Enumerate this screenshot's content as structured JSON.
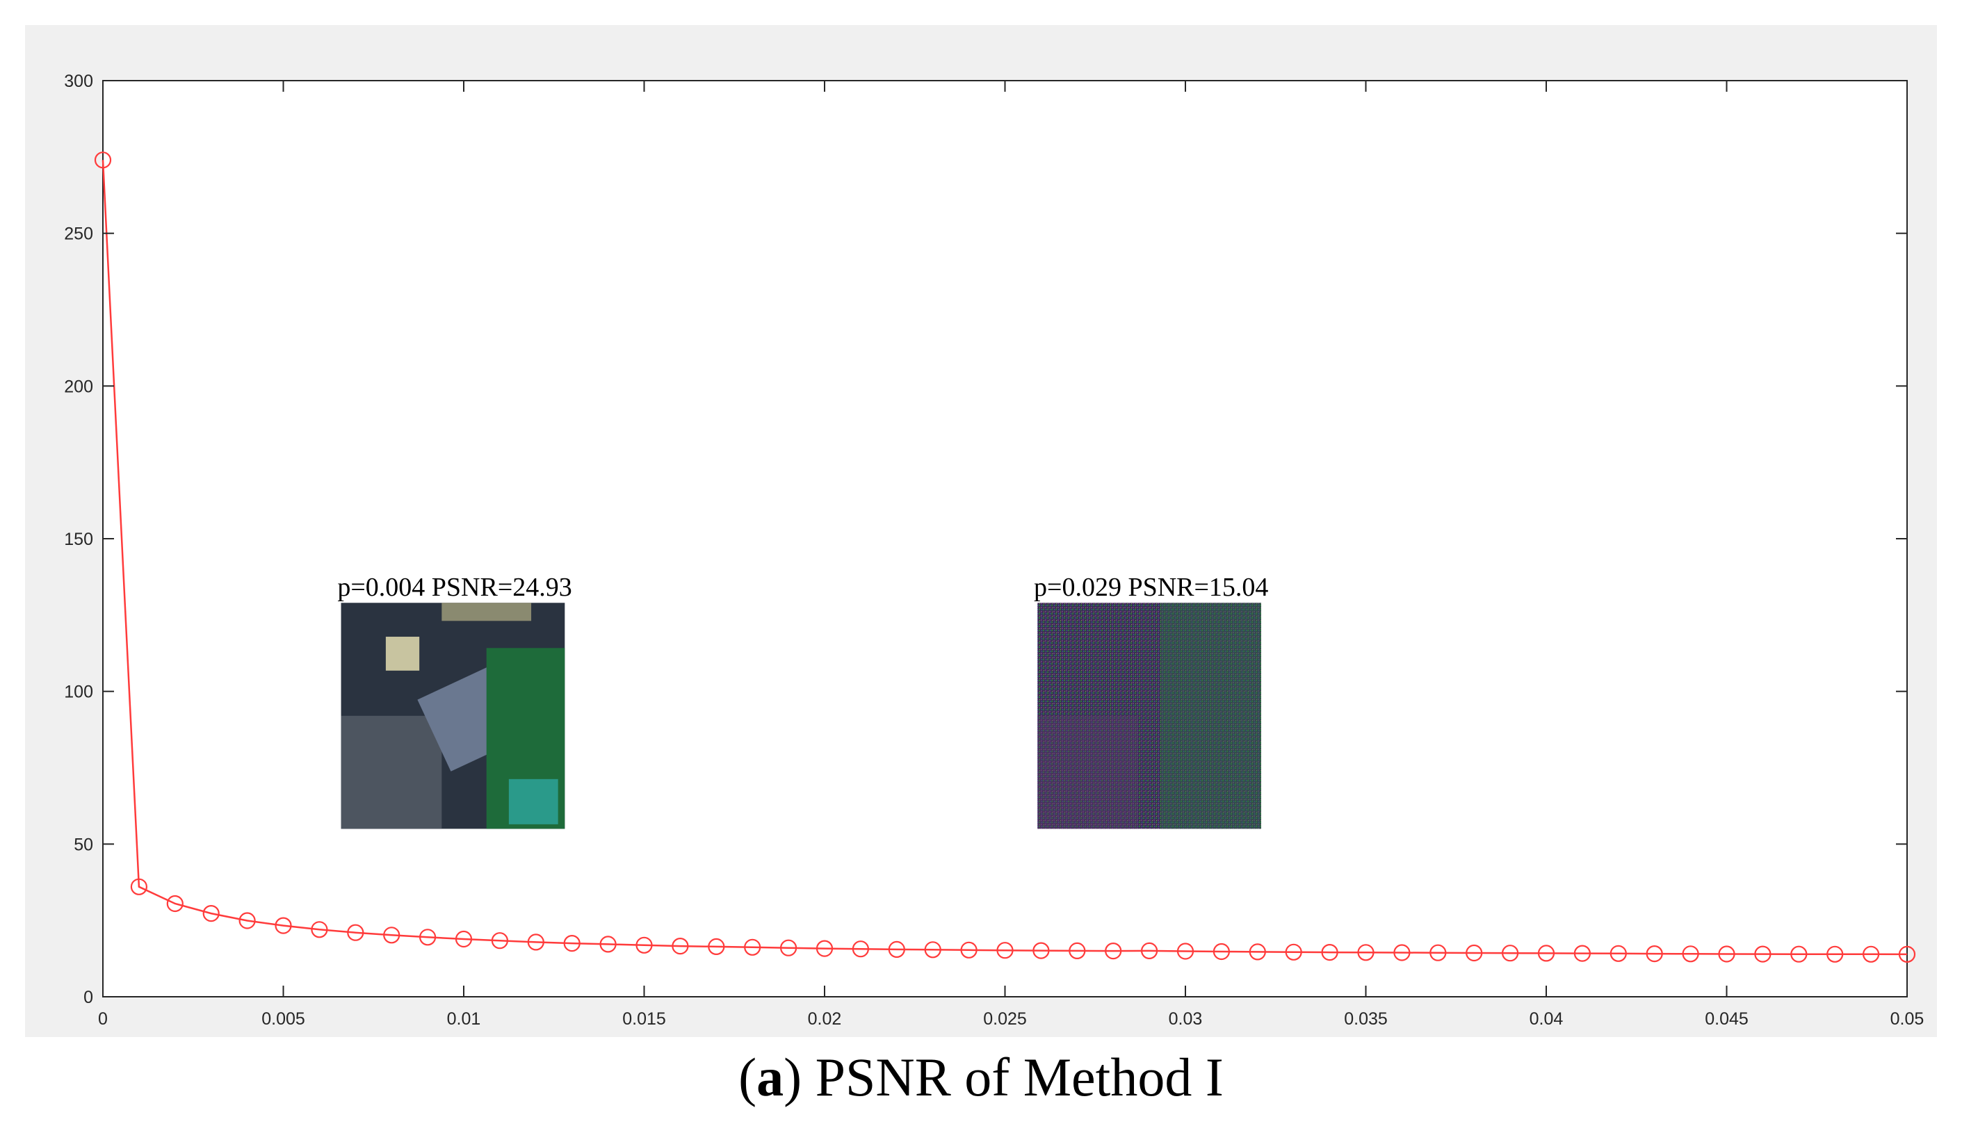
{
  "caption": {
    "prefix": "(",
    "letter": "a",
    "text": ") PSNR of Method I"
  },
  "colors": {
    "series": "#ff3b3b",
    "frame_bg": "#f0f0f0",
    "axes": "#262626"
  },
  "chart_data": {
    "type": "line",
    "title": "",
    "xlabel": "",
    "ylabel": "",
    "xlim": [
      0,
      0.05
    ],
    "ylim": [
      0,
      300
    ],
    "grid": false,
    "marker": "circle",
    "xticks": [
      0,
      0.005,
      0.01,
      0.015,
      0.02,
      0.025,
      0.03,
      0.035,
      0.04,
      0.045,
      0.05
    ],
    "xtick_labels": [
      "0",
      "0.005",
      "0.01",
      "0.015",
      "0.02",
      "0.025",
      "0.03",
      "0.035",
      "0.04",
      "0.045",
      "0.05"
    ],
    "yticks": [
      0,
      50,
      100,
      150,
      200,
      250,
      300
    ],
    "ytick_labels": [
      "0",
      "50",
      "100",
      "150",
      "200",
      "250",
      "300"
    ],
    "series": [
      {
        "x": [
          0,
          0.001,
          0.002,
          0.003,
          0.004,
          0.005,
          0.006,
          0.007,
          0.008,
          0.009,
          0.01,
          0.011,
          0.012,
          0.013,
          0.014,
          0.015,
          0.016,
          0.017,
          0.018,
          0.019,
          0.02,
          0.021,
          0.022,
          0.023,
          0.024,
          0.025,
          0.026,
          0.027,
          0.028,
          0.029,
          0.03,
          0.031,
          0.032,
          0.033,
          0.034,
          0.035,
          0.036,
          0.037,
          0.038,
          0.039,
          0.04,
          0.041,
          0.042,
          0.043,
          0.044,
          0.045,
          0.046,
          0.047,
          0.048,
          0.049,
          0.05
        ],
        "y": [
          274,
          36,
          30.5,
          27.3,
          24.93,
          23.3,
          22.0,
          21.0,
          20.2,
          19.5,
          18.9,
          18.4,
          17.9,
          17.5,
          17.2,
          16.9,
          16.6,
          16.4,
          16.2,
          16.0,
          15.8,
          15.65,
          15.5,
          15.4,
          15.3,
          15.2,
          15.12,
          15.05,
          15.0,
          15.04,
          14.9,
          14.8,
          14.7,
          14.62,
          14.55,
          14.5,
          14.45,
          14.4,
          14.35,
          14.3,
          14.25,
          14.2,
          14.15,
          14.1,
          14.05,
          14.0,
          13.98,
          13.96,
          13.94,
          13.92,
          13.9
        ]
      }
    ],
    "annotations": [
      {
        "label": "p=0.004   PSNR=24.93",
        "at": [
          0.0065,
          130
        ]
      },
      {
        "label": "p=0.029   PSNR=15.04",
        "at": [
          0.0258,
          130
        ]
      }
    ],
    "inset_images": [
      {
        "name": "inset-image-p0004",
        "style": "clean-aerial",
        "extent_x": [
          0.0066,
          0.0128
        ],
        "extent_y": [
          55,
          129
        ]
      },
      {
        "name": "inset-image-p0029",
        "style": "noisy-aerial",
        "extent_x": [
          0.0259,
          0.0321
        ],
        "extent_y": [
          55,
          129
        ]
      }
    ]
  }
}
